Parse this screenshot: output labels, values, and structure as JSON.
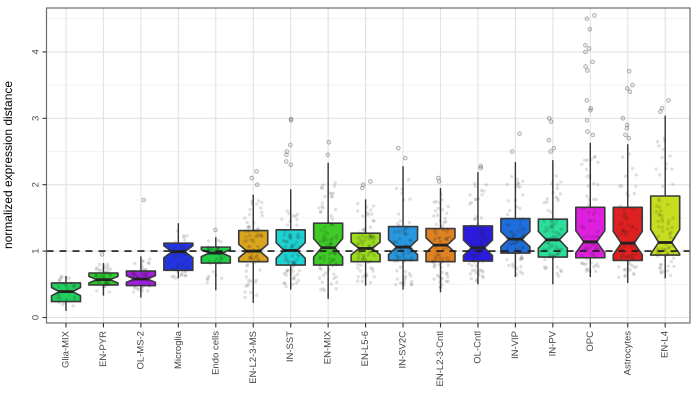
{
  "chart_data": {
    "type": "boxplot",
    "title": "",
    "xlabel": "",
    "ylabel": "normalized expression distance",
    "ylim": [
      -0.08,
      4.65
    ],
    "yticks": [
      0,
      1,
      2,
      3,
      4
    ],
    "minor_gridlines": [
      0.5,
      1.5,
      2.5,
      3.5,
      4.5
    ],
    "grid": "on",
    "legend": "none",
    "reference_line": {
      "y": 1,
      "style": "dashed",
      "color": "#1a1a1a"
    },
    "point_style": {
      "jitter_color": "#222222",
      "jitter_opacity": 0.14
    },
    "panel": {
      "border_color": "#6e6e6e",
      "major_grid_color": "#e2e2e2",
      "minor_grid_color": "#efefef"
    },
    "categories": [
      {
        "label": "Glia-MIX",
        "color": "#22CE5E",
        "low": 0.1,
        "q1": 0.24,
        "median": 0.39,
        "q3": 0.52,
        "high": 0.62,
        "n": 30,
        "outliers": []
      },
      {
        "label": "EN-PYR",
        "color": "#2ED02E",
        "low": 0.33,
        "q1": 0.49,
        "median": 0.57,
        "q3": 0.67,
        "high": 0.82,
        "n": 45,
        "outliers": [
          0.95
        ]
      },
      {
        "label": "OL-MS-2",
        "color": "#A21FDE",
        "low": 0.3,
        "q1": 0.48,
        "median": 0.58,
        "q3": 0.7,
        "high": 0.92,
        "n": 45,
        "outliers": [
          1.77
        ]
      },
      {
        "label": "Microglia",
        "color": "#2333DE",
        "low": 0.59,
        "q1": 0.71,
        "median": 0.99,
        "q3": 1.12,
        "high": 1.42,
        "n": 35,
        "outliers": []
      },
      {
        "label": "Endo cells",
        "color": "#1FCE45",
        "low": 0.41,
        "q1": 0.82,
        "median": 0.97,
        "q3": 1.06,
        "high": 1.21,
        "n": 35,
        "outliers": [
          1.32
        ]
      },
      {
        "label": "EN-L2-3-MS",
        "color": "#DBA41E",
        "low": 0.22,
        "q1": 0.84,
        "median": 1.0,
        "q3": 1.31,
        "high": 1.85,
        "n": 75,
        "outliers": [
          2.0,
          2.1,
          2.2
        ]
      },
      {
        "label": "IN-SST",
        "color": "#1FD2D2",
        "low": 0.42,
        "q1": 0.79,
        "median": 1.01,
        "q3": 1.32,
        "high": 1.93,
        "n": 75,
        "outliers": [
          2.3,
          2.35,
          2.45,
          2.5,
          2.6,
          2.97,
          2.99
        ]
      },
      {
        "label": "EN-MIX",
        "color": "#3FCB27",
        "low": 0.28,
        "q1": 0.79,
        "median": 1.05,
        "q3": 1.42,
        "high": 2.33,
        "n": 80,
        "outliers": [
          2.45,
          2.64
        ]
      },
      {
        "label": "EN-L5-6",
        "color": "#9CDB1E",
        "low": 0.48,
        "q1": 0.84,
        "median": 1.04,
        "q3": 1.27,
        "high": 1.78,
        "n": 75,
        "outliers": [
          1.95,
          2.0,
          2.05
        ]
      },
      {
        "label": "IN-SV2C",
        "color": "#2797DE",
        "low": 0.42,
        "q1": 0.86,
        "median": 1.06,
        "q3": 1.37,
        "high": 2.28,
        "n": 75,
        "outliers": [
          2.4,
          2.55
        ]
      },
      {
        "label": "EN-L2-3-Cntl",
        "color": "#DE8223",
        "low": 0.38,
        "q1": 0.84,
        "median": 1.09,
        "q3": 1.34,
        "high": 1.95,
        "n": 75,
        "outliers": [
          2.05,
          2.1
        ]
      },
      {
        "label": "OL-Cntl",
        "color": "#2A1BDE",
        "low": 0.5,
        "q1": 0.85,
        "median": 1.05,
        "q3": 1.38,
        "high": 2.19,
        "n": 70,
        "outliers": [
          2.25,
          2.28
        ]
      },
      {
        "label": "IN-VIP",
        "color": "#1F6EDE",
        "low": 0.61,
        "q1": 0.97,
        "median": 1.18,
        "q3": 1.49,
        "high": 2.34,
        "n": 75,
        "outliers": [
          2.5,
          2.77
        ]
      },
      {
        "label": "IN-PV",
        "color": "#2BDE9A",
        "low": 0.5,
        "q1": 0.91,
        "median": 1.17,
        "q3": 1.48,
        "high": 2.37,
        "n": 75,
        "outliers": [
          2.5,
          2.55,
          2.67,
          2.95,
          3.0
        ]
      },
      {
        "label": "OPC",
        "color": "#DE1FDE",
        "low": 0.61,
        "q1": 0.9,
        "median": 1.14,
        "q3": 1.66,
        "high": 2.63,
        "n": 70,
        "outliers": [
          2.75,
          2.8,
          2.97,
          3.12,
          3.15,
          3.27,
          3.72,
          3.78,
          3.85,
          4.0,
          4.05,
          4.1,
          4.34,
          4.5,
          4.55
        ]
      },
      {
        "label": "Astrocytes",
        "color": "#DE2020",
        "low": 0.52,
        "q1": 0.86,
        "median": 1.12,
        "q3": 1.66,
        "high": 2.61,
        "n": 70,
        "outliers": [
          2.7,
          2.75,
          2.85,
          2.9,
          3.0,
          3.4,
          3.45,
          3.5,
          3.71
        ]
      },
      {
        "label": "EN-L4",
        "color": "#C6DE1F",
        "low": 0.59,
        "q1": 0.94,
        "median": 1.13,
        "q3": 1.83,
        "high": 3.04,
        "n": 70,
        "outliers": [
          3.1,
          3.15,
          3.27
        ]
      }
    ]
  }
}
